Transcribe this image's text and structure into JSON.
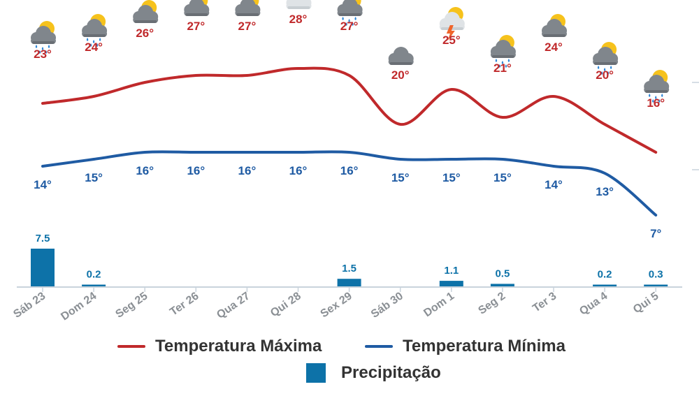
{
  "chart_data": {
    "type": "line",
    "categories": [
      "Sáb 23",
      "Dom 24",
      "Seg 25",
      "Ter 26",
      "Qua 27",
      "Qui 28",
      "Sex 29",
      "Sáb 30",
      "Dom 1",
      "Seg 2",
      "Ter 3",
      "Qua 4",
      "Qui 5"
    ],
    "icons": [
      "rain-icon",
      "rain-icon",
      "cloudy-icon",
      "cloudy-icon",
      "cloudy-icon",
      "partly-cloudy-icon",
      "rain-icon",
      "cloud-icon",
      "storm-icon",
      "rain-icon",
      "cloudy-icon",
      "rain-icon",
      "rain-icon"
    ],
    "series": [
      {
        "name": "Temperatura Máxima",
        "kind": "line",
        "color": "#c0292b",
        "values": [
          23,
          24,
          26,
          27,
          27,
          28,
          27,
          20,
          25,
          21,
          24,
          20,
          16
        ],
        "labels": [
          "23°",
          "24°",
          "26°",
          "27°",
          "27°",
          "28°",
          "27°",
          "20°",
          "25°",
          "21°",
          "24°",
          "20°",
          "16°"
        ]
      },
      {
        "name": "Temperatura Mínima",
        "kind": "line",
        "color": "#1f5ba3",
        "values": [
          14,
          15,
          16,
          16,
          16,
          16,
          16,
          15,
          15,
          15,
          14,
          13,
          7
        ],
        "labels": [
          "14°",
          "15°",
          "16°",
          "16°",
          "16°",
          "16°",
          "16°",
          "15°",
          "15°",
          "15°",
          "14°",
          "13°",
          "7°"
        ]
      },
      {
        "name": "Precipitação",
        "kind": "bar",
        "color": "#0d72a8",
        "values": [
          7.5,
          0.2,
          null,
          null,
          null,
          null,
          1.5,
          null,
          1.1,
          0.5,
          null,
          0.2,
          0.3
        ],
        "labels": [
          "7.5",
          "0.2",
          "",
          "",
          "",
          "",
          "1.5",
          "",
          "1.1",
          "0.5",
          "",
          "0.2",
          "0.3"
        ]
      }
    ],
    "legend": {
      "max_label": "Temperatura Máxima",
      "min_label": "Temperatura Mínima",
      "precip_label": "Precipitação"
    },
    "colors": {
      "max": "#c0292b",
      "min": "#1f5ba3",
      "precip": "#0d72a8",
      "axis": "#c9d3dc",
      "tick_label": "#8a8f94"
    }
  }
}
